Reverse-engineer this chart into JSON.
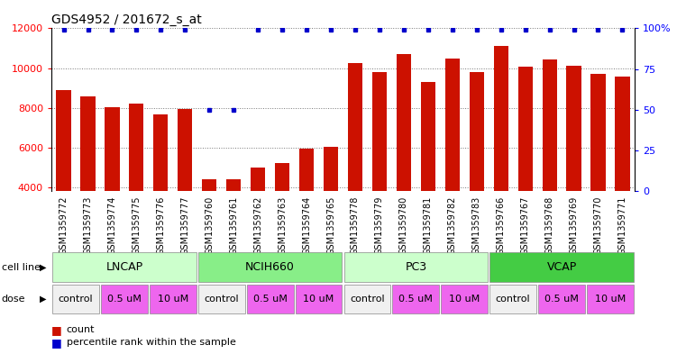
{
  "title": "GDS4952 / 201672_s_at",
  "samples": [
    "GSM1359772",
    "GSM1359773",
    "GSM1359774",
    "GSM1359775",
    "GSM1359776",
    "GSM1359777",
    "GSM1359760",
    "GSM1359761",
    "GSM1359762",
    "GSM1359763",
    "GSM1359764",
    "GSM1359765",
    "GSM1359778",
    "GSM1359779",
    "GSM1359780",
    "GSM1359781",
    "GSM1359782",
    "GSM1359783",
    "GSM1359766",
    "GSM1359767",
    "GSM1359768",
    "GSM1359769",
    "GSM1359770",
    "GSM1359771"
  ],
  "counts": [
    8900,
    8550,
    8050,
    8200,
    7650,
    7950,
    4400,
    4400,
    5000,
    5200,
    5950,
    6050,
    10250,
    9800,
    10700,
    9300,
    10500,
    9800,
    11100,
    10050,
    10450,
    10100,
    9700,
    9550
  ],
  "percentile_ranks": [
    99,
    99,
    99,
    99,
    99,
    99,
    50,
    50,
    99,
    99,
    99,
    99,
    99,
    99,
    99,
    99,
    99,
    99,
    99,
    99,
    99,
    99,
    99,
    99
  ],
  "cell_lines": [
    {
      "name": "LNCAP",
      "start": 0,
      "end": 6,
      "color": "#ccffcc"
    },
    {
      "name": "NCIH660",
      "start": 6,
      "end": 12,
      "color": "#88ee88"
    },
    {
      "name": "PC3",
      "start": 12,
      "end": 18,
      "color": "#ccffcc"
    },
    {
      "name": "VCAP",
      "start": 18,
      "end": 24,
      "color": "#44cc44"
    }
  ],
  "dose_groups": [
    {
      "label": "control",
      "start": 0,
      "end": 2,
      "color": "#f0f0f0"
    },
    {
      "label": "0.5 uM",
      "start": 2,
      "end": 4,
      "color": "#ee66ee"
    },
    {
      "label": "10 uM",
      "start": 4,
      "end": 6,
      "color": "#ee66ee"
    },
    {
      "label": "control",
      "start": 6,
      "end": 8,
      "color": "#f0f0f0"
    },
    {
      "label": "0.5 uM",
      "start": 8,
      "end": 10,
      "color": "#ee66ee"
    },
    {
      "label": "10 uM",
      "start": 10,
      "end": 12,
      "color": "#ee66ee"
    },
    {
      "label": "control",
      "start": 12,
      "end": 14,
      "color": "#f0f0f0"
    },
    {
      "label": "0.5 uM",
      "start": 14,
      "end": 16,
      "color": "#ee66ee"
    },
    {
      "label": "10 uM",
      "start": 16,
      "end": 18,
      "color": "#ee66ee"
    },
    {
      "label": "control",
      "start": 18,
      "end": 20,
      "color": "#f0f0f0"
    },
    {
      "label": "0.5 uM",
      "start": 20,
      "end": 22,
      "color": "#ee66ee"
    },
    {
      "label": "10 uM",
      "start": 22,
      "end": 24,
      "color": "#ee66ee"
    }
  ],
  "bar_color": "#cc1100",
  "percentile_color": "#0000cc",
  "ylim_left": [
    3800,
    12000
  ],
  "ylim_right": [
    0,
    100
  ],
  "yticks_left": [
    4000,
    6000,
    8000,
    10000,
    12000
  ],
  "yticks_right": [
    0,
    25,
    50,
    75,
    100
  ],
  "ytick_labels_right": [
    "0",
    "25",
    "50",
    "75",
    "100%"
  ],
  "background_color": "#ffffff",
  "xticklabel_bg": "#dddddd",
  "title_fontsize": 10,
  "bar_tick_fontsize": 7,
  "cell_line_fontsize": 9,
  "dose_fontsize": 8,
  "legend_fontsize": 8
}
